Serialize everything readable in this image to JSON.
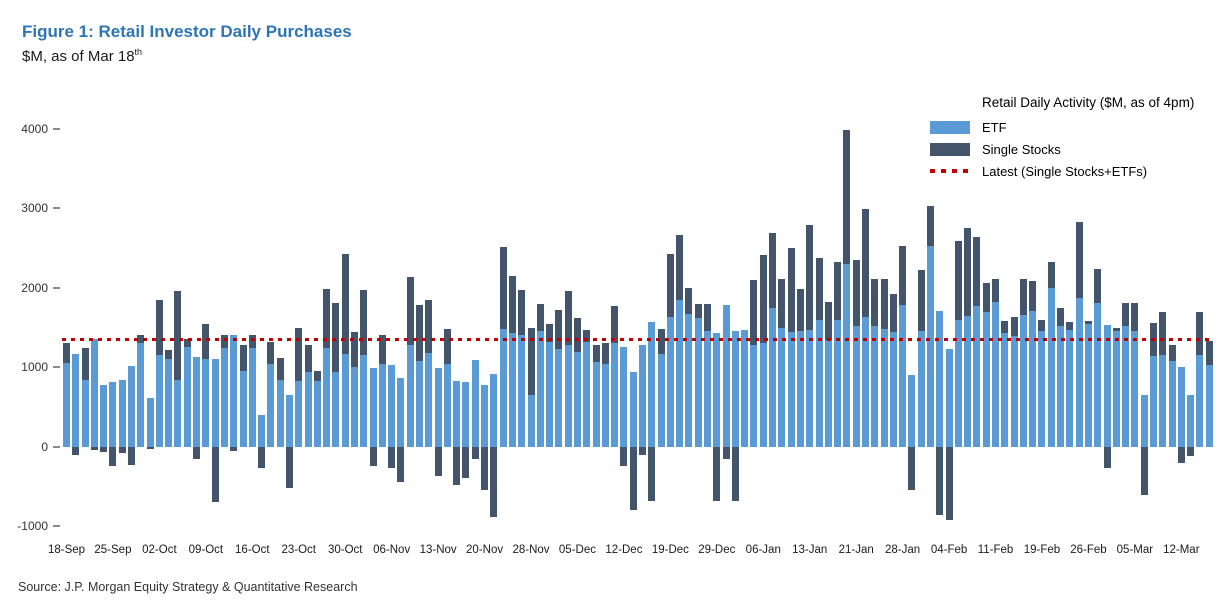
{
  "header": {
    "title": "Figure 1: Retail Investor Daily Purchases",
    "subtitle": "$M, as of Mar 18",
    "subtitle_sup": "th"
  },
  "source": "Source: J.P. Morgan Equity Strategy & Quantitative Research",
  "chart_data": {
    "type": "bar",
    "stacked": true,
    "title": "Figure 1: Retail Investor Daily Purchases",
    "subtitle": "$M, as of Mar 18th",
    "legend_title": "Retail Daily Activity ($M, as of 4pm)",
    "legend_position": "top-right",
    "grid": false,
    "ylim": [
      -1100,
      4200
    ],
    "yticks": [
      4000,
      3000,
      2000,
      1000,
      0,
      -1000
    ],
    "x_tick_labels": [
      "18-Sep",
      "25-Sep",
      "02-Oct",
      "09-Oct",
      "16-Oct",
      "23-Oct",
      "30-Oct",
      "06-Nov",
      "13-Nov",
      "20-Nov",
      "28-Nov",
      "05-Dec",
      "12-Dec",
      "19-Dec",
      "29-Dec",
      "06-Jan",
      "13-Jan",
      "21-Jan",
      "28-Jan",
      "04-Feb",
      "11-Feb",
      "19-Feb",
      "26-Feb",
      "05-Mar",
      "12-Mar"
    ],
    "x_tick_every": 5,
    "units": "$M",
    "latest_line": {
      "label": "Latest (Single Stocks+ETFs)",
      "value": 1350,
      "color": "#C00000"
    },
    "series": [
      {
        "name": "ETF",
        "color": "#5B9BD5",
        "values": [
          1050,
          1160,
          840,
          1350,
          770,
          815,
          840,
          1010,
          1300,
          615,
          1150,
          1100,
          840,
          1250,
          1130,
          1100,
          1100,
          1245,
          1400,
          950,
          1245,
          400,
          1045,
          840,
          650,
          825,
          945,
          825,
          1245,
          945,
          1160,
          1005,
          1150,
          995,
          1045,
          1025,
          865,
          1285,
          1075,
          1175,
          985,
          1045,
          820,
          815,
          1090,
          775,
          920,
          1475,
          1425,
          1405,
          650,
          1455,
          1320,
          1235,
          1280,
          1185,
          1320,
          1070,
          1045,
          1310,
          1255,
          945,
          1285,
          1565,
          1160,
          1635,
          1845,
          1665,
          1625,
          1455,
          1425,
          1780,
          1455,
          1465,
          1280,
          1300,
          1750,
          1490,
          1445,
          1455,
          1470,
          1600,
          1345,
          1600,
          2300,
          1515,
          1630,
          1515,
          1480,
          1440,
          1785,
          905,
          1450,
          2520,
          1710,
          1230,
          1600,
          1640,
          1775,
          1690,
          1815,
          1430,
          1390,
          1660,
          1710,
          1450,
          1995,
          1520,
          1470,
          1870,
          1545,
          1805,
          1535,
          1460,
          1520,
          1460,
          655,
          1145,
          1155,
          1075,
          1000,
          655,
          1155,
          1025
        ]
      },
      {
        "name": "Single Stocks",
        "color": "#44546A",
        "values": [
          250,
          -100,
          400,
          -40,
          -70,
          -250,
          -80,
          -230,
          100,
          -30,
          700,
          120,
          1120,
          100,
          -150,
          450,
          -700,
          155,
          -60,
          330,
          155,
          -270,
          275,
          270,
          -525,
          670,
          330,
          125,
          745,
          865,
          1270,
          440,
          820,
          -250,
          355,
          -270,
          -440,
          845,
          705,
          670,
          -370,
          440,
          -480,
          -400,
          -150,
          -545,
          -880,
          1040,
          720,
          565,
          840,
          345,
          220,
          490,
          675,
          430,
          145,
          210,
          255,
          455,
          -250,
          -795,
          -105,
          -690,
          320,
          785,
          820,
          335,
          165,
          335,
          -690,
          -150,
          -690,
          0,
          815,
          1110,
          945,
          625,
          1060,
          535,
          1315,
          780,
          470,
          730,
          1680,
          835,
          1365,
          595,
          630,
          480,
          745,
          -540,
          775,
          505,
          -855,
          -920,
          985,
          1110,
          860,
          375,
          295,
          155,
          240,
          450,
          370,
          150,
          335,
          230,
          105,
          955,
          40,
          430,
          -270,
          30,
          285,
          345,
          -605,
          410,
          545,
          200,
          -205,
          -120,
          545,
          300
        ]
      }
    ]
  }
}
